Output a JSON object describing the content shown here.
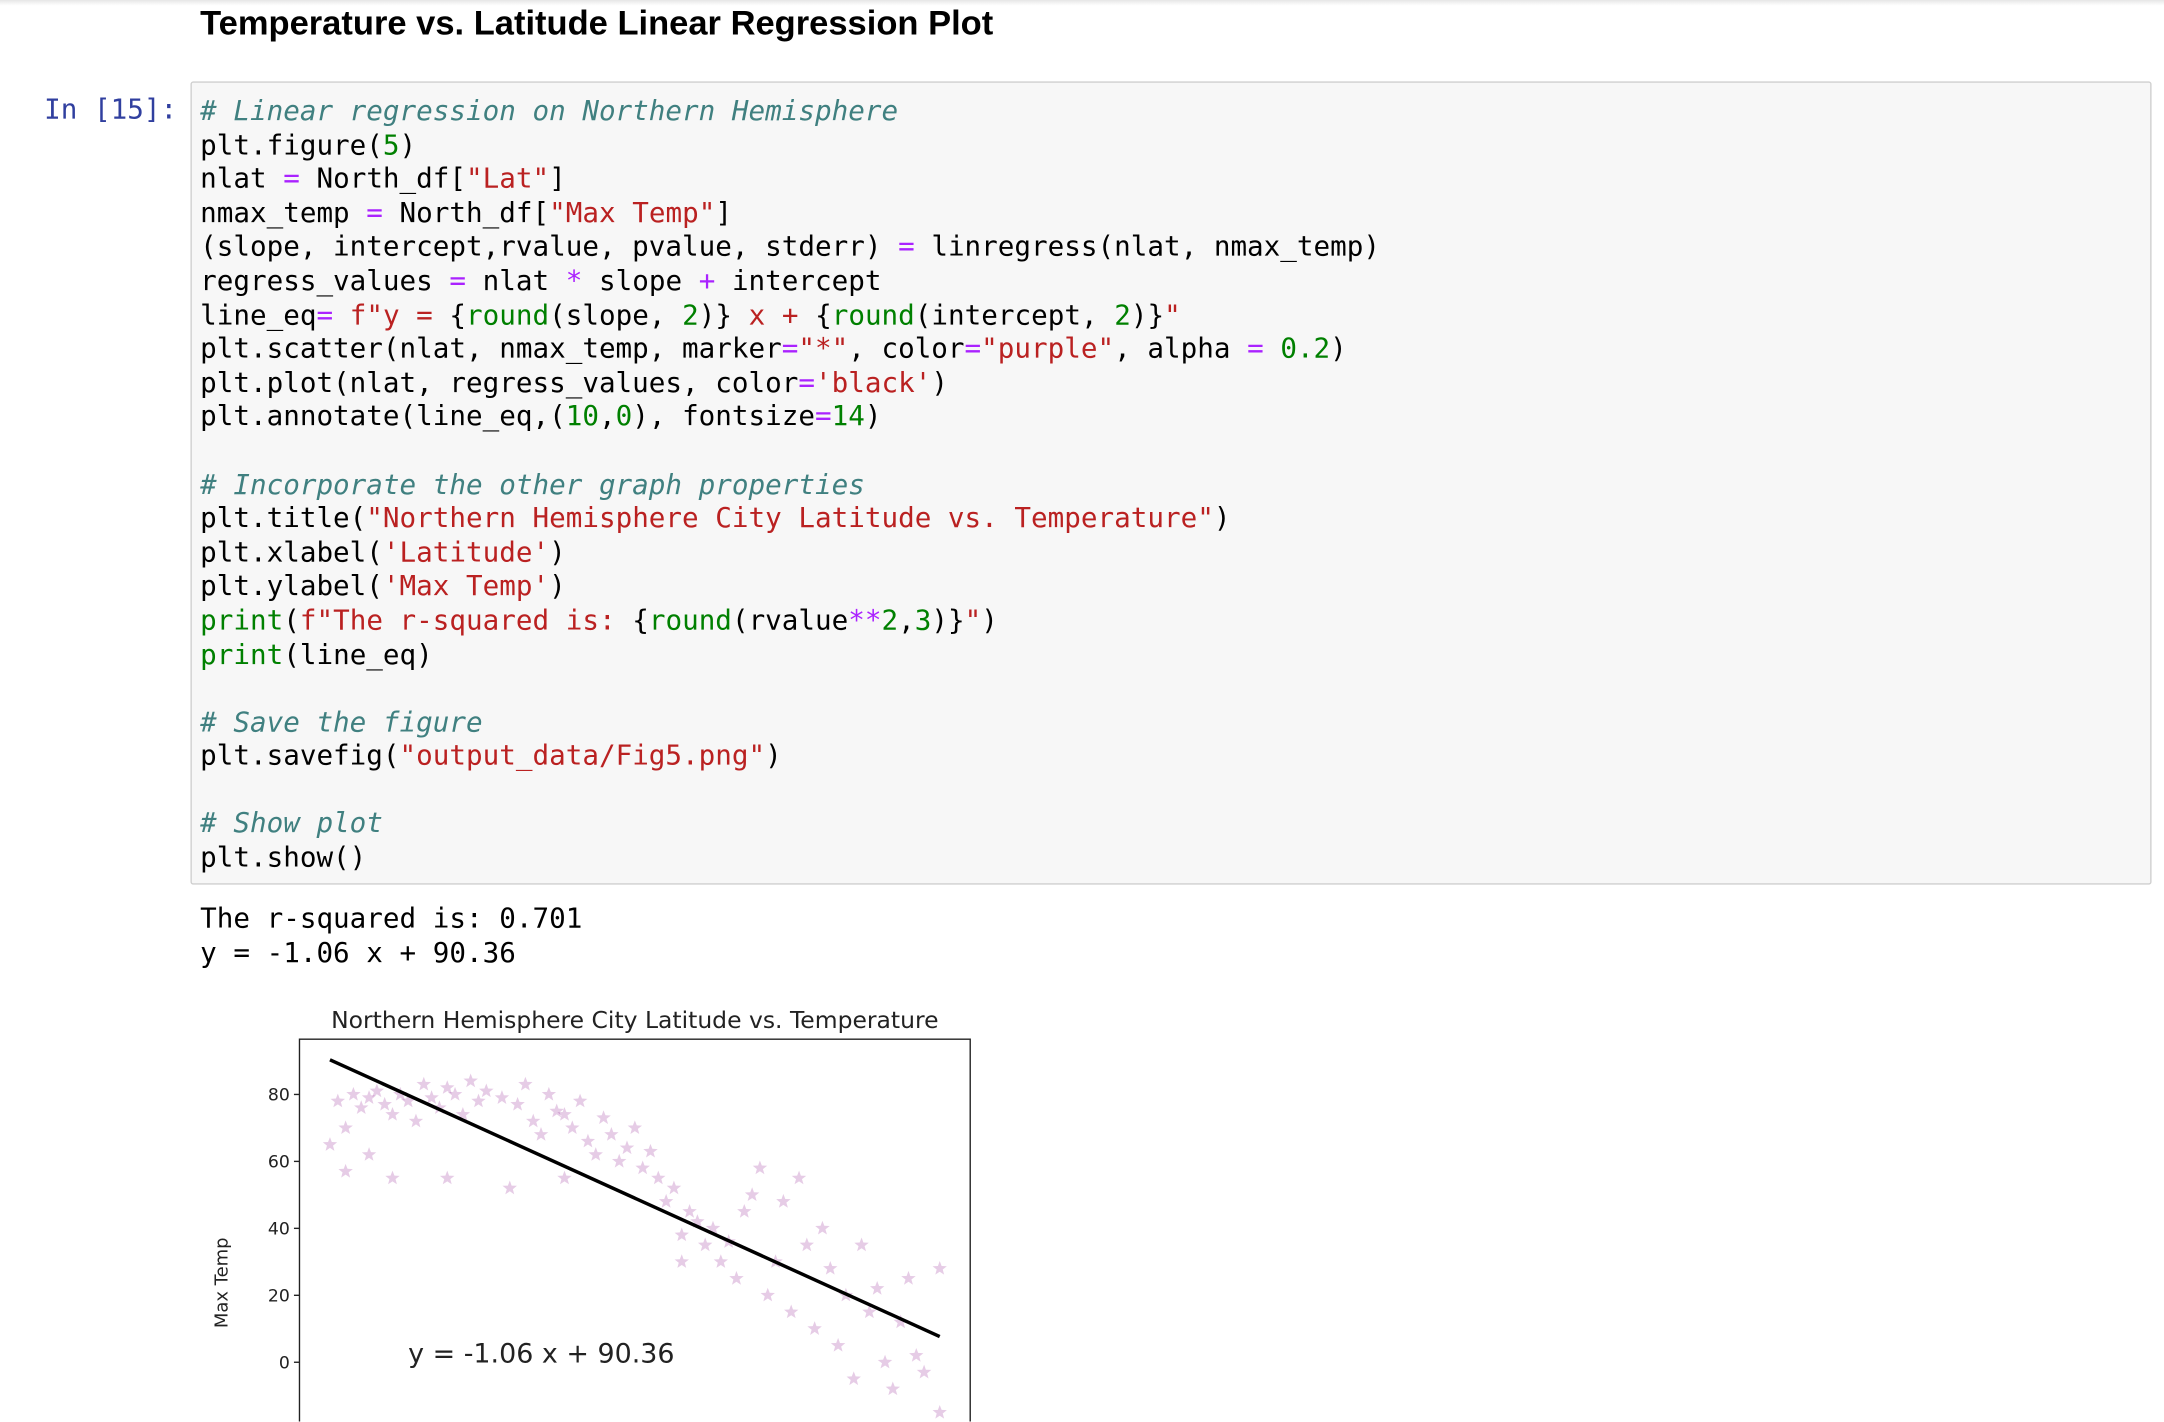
{
  "heading": "Temperature vs. Latitude Linear Regression Plot",
  "cell": {
    "prompt": "In [15]:",
    "code": [
      [
        "# Linear regression on Northern Hemisphere",
        "plt.figure(5)",
        "nlat = North_df[\"Lat\"]",
        "nmax_temp = North_df[\"Max Temp\"]",
        "(slope, intercept,rvalue, pvalue, stderr) = linregress(nlat, nmax_temp)",
        "regress_values = nlat * slope + intercept",
        "line_eq= f\"y = {round(slope, 2)} x + {round(intercept, 2)}\"",
        "plt.scatter(nlat, nmax_temp, marker=\"*\", color=\"purple\", alpha = 0.2)",
        "plt.plot(nlat, regress_values, color='black')",
        "plt.annotate(line_eq,(10,0), fontsize=14)"
      ],
      [
        "# Incorporate the other graph properties",
        "plt.title(\"Northern Hemisphere City Latitude vs. Temperature\")",
        "plt.xlabel('Latitude')",
        "plt.ylabel('Max Temp')",
        "print(f\"The r-squared is: {round(rvalue**2,3)}\")",
        "print(line_eq)"
      ],
      [
        "# Save the figure",
        "plt.savefig(\"output_data/Fig5.png\")"
      ],
      [
        "# Show plot",
        "plt.show()"
      ]
    ],
    "output": [
      "The r-squared is: 0.701",
      "y = -1.06 x + 90.36"
    ]
  },
  "chart_data": {
    "type": "scatter",
    "title": "Northern Hemisphere City Latitude vs. Temperature",
    "y_label": "Max Temp",
    "annotation": {
      "text": "y = -1.06 x + 90.36",
      "x": 10,
      "y": 0
    },
    "color": "purple",
    "alpha": 0.2,
    "marker": "star",
    "xlim": [
      -3.9,
      81.9
    ],
    "ylim": [
      -17.7,
      96.5
    ],
    "yticks": [
      0,
      20,
      40,
      60,
      80
    ],
    "x": [
      1,
      2,
      0,
      3,
      4,
      5,
      6,
      7,
      8,
      9,
      10,
      11,
      12,
      13,
      14,
      15,
      16,
      17,
      18,
      19,
      20,
      22,
      24,
      25,
      26,
      27,
      28,
      29,
      30,
      31,
      32,
      33,
      34,
      35,
      36,
      37,
      38,
      39,
      40,
      41,
      42,
      43,
      44,
      45,
      46,
      47,
      48,
      49,
      50,
      51,
      52,
      53,
      54,
      55,
      56,
      57,
      58,
      59,
      60,
      61,
      62,
      63,
      64,
      65,
      66,
      67,
      68,
      69,
      70,
      71,
      72,
      73,
      74,
      75,
      76,
      78,
      78,
      5,
      8,
      15,
      23,
      30,
      45,
      2
    ],
    "values": [
      78,
      70,
      65,
      80,
      76,
      79,
      81,
      77,
      74,
      80,
      78,
      72,
      83,
      79,
      76,
      82,
      80,
      74,
      84,
      78,
      81,
      79,
      77,
      83,
      72,
      68,
      80,
      75,
      74,
      70,
      78,
      66,
      62,
      73,
      68,
      60,
      64,
      70,
      58,
      63,
      55,
      48,
      52,
      38,
      45,
      42,
      35,
      40,
      30,
      36,
      25,
      45,
      50,
      58,
      20,
      30,
      48,
      15,
      55,
      35,
      10,
      40,
      28,
      5,
      20,
      -5,
      35,
      15,
      22,
      0,
      -8,
      12,
      25,
      2,
      -3,
      -15,
      28,
      62,
      55,
      55,
      52,
      55,
      30,
      57
    ],
    "regression": {
      "color": "black",
      "x": [
        0,
        78
      ],
      "values": [
        90.36,
        7.68
      ]
    }
  }
}
